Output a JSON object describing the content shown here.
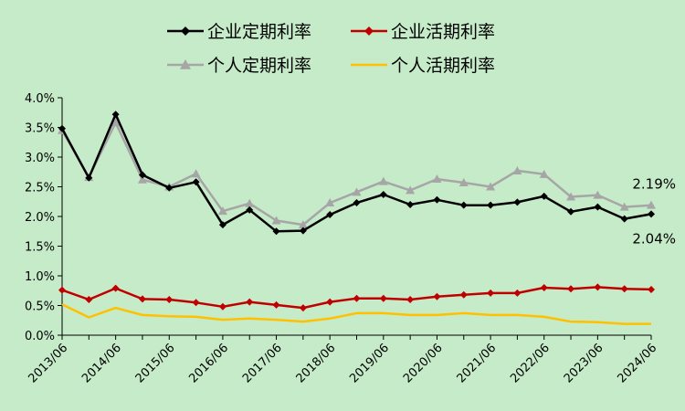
{
  "chart_data": {
    "type": "line",
    "title": "",
    "xlabel": "",
    "ylabel": "",
    "ylim": [
      0,
      0.04
    ],
    "y_ticks": [
      "0.0%",
      "0.5%",
      "1.0%",
      "1.5%",
      "2.0%",
      "2.5%",
      "3.0%",
      "3.5%",
      "4.0%"
    ],
    "x_tick_labels": [
      "2013/06",
      "2014/06",
      "2015/06",
      "2016/06",
      "2017/06",
      "2018/06",
      "2019/06",
      "2020/06",
      "2021/06",
      "2022/06",
      "2023/06",
      "2024/06"
    ],
    "x": [
      "2013/06",
      "2013/12",
      "2014/06",
      "2014/12",
      "2015/06",
      "2015/12",
      "2016/06",
      "2016/12",
      "2017/06",
      "2017/12",
      "2018/06",
      "2018/12",
      "2019/06",
      "2019/12",
      "2020/06",
      "2020/12",
      "2021/06",
      "2021/12",
      "2022/06",
      "2022/12",
      "2023/06",
      "2023/12",
      "2024/06"
    ],
    "legend_position": "top",
    "grid": false,
    "series": [
      {
        "name": "企业定期利率",
        "color": "#000000",
        "marker": "diamond",
        "values": [
          0.0348,
          0.0265,
          0.0372,
          0.027,
          0.0248,
          0.0258,
          0.0186,
          0.0211,
          0.0175,
          0.0176,
          0.0203,
          0.0223,
          0.0237,
          0.022,
          0.0228,
          0.0219,
          0.0219,
          0.0224,
          0.0234,
          0.0208,
          0.0216,
          0.0196,
          0.0204
        ]
      },
      {
        "name": "企业活期利率",
        "color": "#c00000",
        "marker": "diamond",
        "values": [
          0.0076,
          0.006,
          0.0079,
          0.0061,
          0.006,
          0.0055,
          0.0048,
          0.0056,
          0.0051,
          0.0046,
          0.0056,
          0.0062,
          0.0062,
          0.006,
          0.0065,
          0.0068,
          0.0071,
          0.0071,
          0.008,
          0.0078,
          0.0081,
          0.0078,
          0.0077
        ]
      },
      {
        "name": "个人定期利率",
        "color": "#a6a6a6",
        "marker": "triangle",
        "values": [
          0.0345,
          0.0266,
          0.0358,
          0.0262,
          0.025,
          0.0272,
          0.0209,
          0.0222,
          0.0193,
          0.0186,
          0.0223,
          0.0241,
          0.0259,
          0.0244,
          0.0263,
          0.0257,
          0.025,
          0.0277,
          0.0271,
          0.0233,
          0.0236,
          0.0216,
          0.0219
        ]
      },
      {
        "name": "个人活期利率",
        "color": "#ffc000",
        "marker": "none",
        "values": [
          0.0052,
          0.003,
          0.0046,
          0.0034,
          0.0032,
          0.0031,
          0.0026,
          0.0028,
          0.0026,
          0.0023,
          0.0028,
          0.0037,
          0.0037,
          0.0034,
          0.0034,
          0.0037,
          0.0034,
          0.0034,
          0.0031,
          0.0023,
          0.0022,
          0.0019,
          0.0019
        ]
      }
    ],
    "annotations": [
      {
        "text": "2.19%",
        "series": "个人定期利率",
        "x": "2024/06"
      },
      {
        "text": "2.04%",
        "series": "企业定期利率",
        "x": "2024/06"
      }
    ]
  }
}
